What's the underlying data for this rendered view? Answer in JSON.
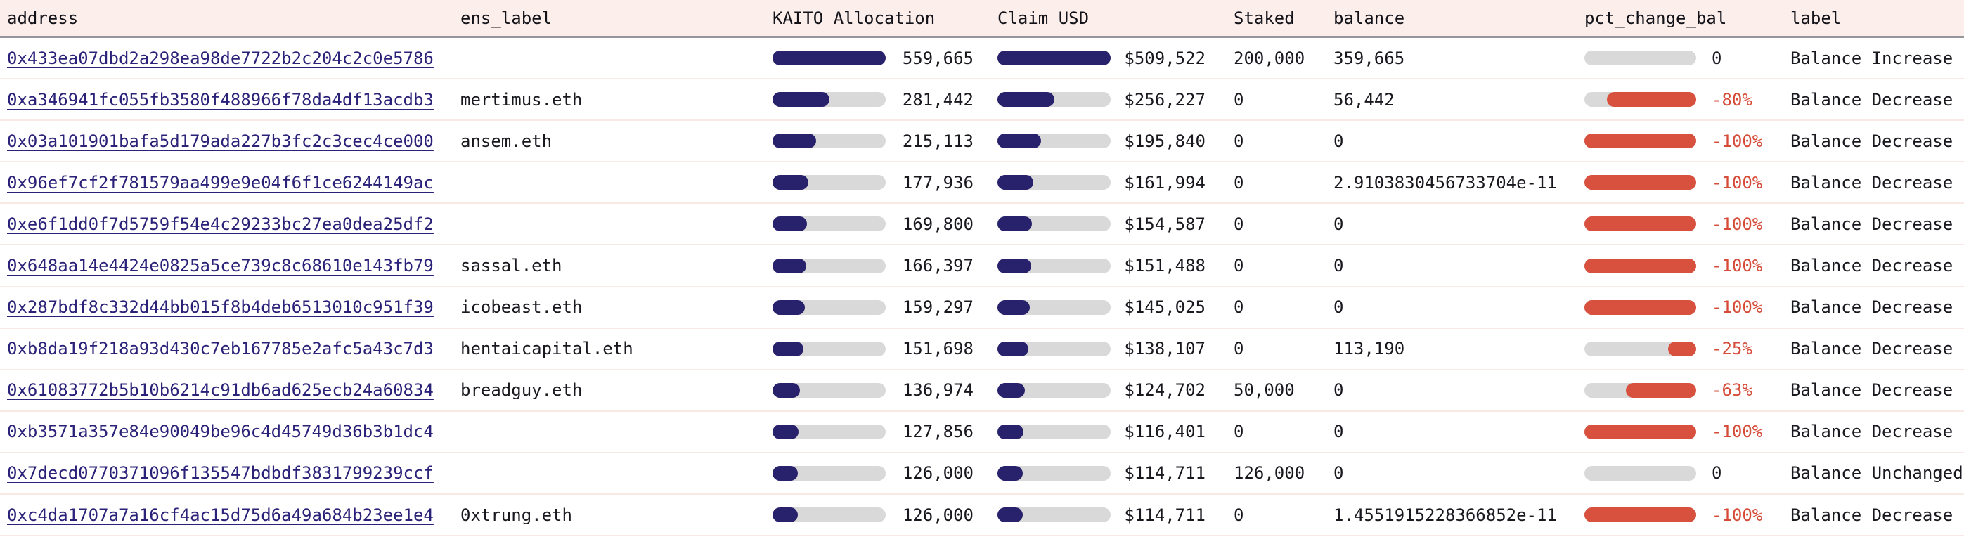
{
  "header": {
    "columns": [
      "address",
      "ens_label",
      "KAITO Allocation",
      "Claim USD",
      "Staked",
      "balance",
      "pct_change_bal",
      "label"
    ]
  },
  "colors": {
    "header_bg": "#fbeeeb",
    "header_border": "#96959b",
    "row_separator": "#f9e9e5",
    "link_navy": "#2a2178",
    "bar_navy": "#28216b",
    "bar_red": "#d8503e",
    "bar_track_gray": "#d9d9d9",
    "negative_text": "#d54b38",
    "body_text": "#18181f"
  },
  "rows": [
    {
      "address": "0x433ea07dbd2a298ea98de7722b2c204c2c0e5786",
      "ens_label": "",
      "kaito_alloc": "559,665",
      "kaito_fill_pct": 100,
      "claim_usd": "$509,522",
      "claim_fill_pct": 100,
      "staked": "200,000",
      "balance": "359,665",
      "pct_change_bal": "0",
      "pct_fill_pct": 0,
      "pct_negative": false,
      "label": "Balance Increase"
    },
    {
      "address": "0xa346941fc055fb3580f488966f78da4df13acdb3",
      "ens_label": "mertimus.eth",
      "kaito_alloc": "281,442",
      "kaito_fill_pct": 50.3,
      "claim_usd": "$256,227",
      "claim_fill_pct": 50.3,
      "staked": "0",
      "balance": "56,442",
      "pct_change_bal": "-80%",
      "pct_fill_pct": 80,
      "pct_negative": true,
      "label": "Balance Decrease"
    },
    {
      "address": "0x03a101901bafa5d179ada227b3fc2c3cec4ce000",
      "ens_label": "ansem.eth",
      "kaito_alloc": "215,113",
      "kaito_fill_pct": 38.4,
      "claim_usd": "$195,840",
      "claim_fill_pct": 38.4,
      "staked": "0",
      "balance": "0",
      "pct_change_bal": "-100%",
      "pct_fill_pct": 100,
      "pct_negative": true,
      "label": "Balance Decrease"
    },
    {
      "address": "0x96ef7cf2f781579aa499e9e04f6f1ce6244149ac",
      "ens_label": "",
      "kaito_alloc": "177,936",
      "kaito_fill_pct": 31.8,
      "claim_usd": "$161,994",
      "claim_fill_pct": 31.8,
      "staked": "0",
      "balance": "2.9103830456733704e-11",
      "pct_change_bal": "-100%",
      "pct_fill_pct": 100,
      "pct_negative": true,
      "label": "Balance Decrease"
    },
    {
      "address": "0xe6f1dd0f7d5759f54e4c29233bc27ea0dea25df2",
      "ens_label": "",
      "kaito_alloc": "169,800",
      "kaito_fill_pct": 30.3,
      "claim_usd": "$154,587",
      "claim_fill_pct": 30.3,
      "staked": "0",
      "balance": "0",
      "pct_change_bal": "-100%",
      "pct_fill_pct": 100,
      "pct_negative": true,
      "label": "Balance Decrease"
    },
    {
      "address": "0x648aa14e4424e0825a5ce739c8c68610e143fb79",
      "ens_label": "sassal.eth",
      "kaito_alloc": "166,397",
      "kaito_fill_pct": 29.7,
      "claim_usd": "$151,488",
      "claim_fill_pct": 29.7,
      "staked": "0",
      "balance": "0",
      "pct_change_bal": "-100%",
      "pct_fill_pct": 100,
      "pct_negative": true,
      "label": "Balance Decrease"
    },
    {
      "address": "0x287bdf8c332d44bb015f8b4deb6513010c951f39",
      "ens_label": "icobeast.eth",
      "kaito_alloc": "159,297",
      "kaito_fill_pct": 28.5,
      "claim_usd": "$145,025",
      "claim_fill_pct": 28.5,
      "staked": "0",
      "balance": "0",
      "pct_change_bal": "-100%",
      "pct_fill_pct": 100,
      "pct_negative": true,
      "label": "Balance Decrease"
    },
    {
      "address": "0xb8da19f218a93d430c7eb167785e2afc5a43c7d3",
      "ens_label": "hentaicapital.eth",
      "kaito_alloc": "151,698",
      "kaito_fill_pct": 27.1,
      "claim_usd": "$138,107",
      "claim_fill_pct": 27.1,
      "staked": "0",
      "balance": "113,190",
      "pct_change_bal": "-25%",
      "pct_fill_pct": 25,
      "pct_negative": true,
      "label": "Balance Decrease"
    },
    {
      "address": "0x61083772b5b10b6214c91db6ad625ecb24a60834",
      "ens_label": "breadguy.eth",
      "kaito_alloc": "136,974",
      "kaito_fill_pct": 24.5,
      "claim_usd": "$124,702",
      "claim_fill_pct": 24.5,
      "staked": "50,000",
      "balance": "0",
      "pct_change_bal": "-63%",
      "pct_fill_pct": 63,
      "pct_negative": true,
      "label": "Balance Decrease"
    },
    {
      "address": "0xb3571a357e84e90049be96c4d45749d36b3b1dc4",
      "ens_label": "",
      "kaito_alloc": "127,856",
      "kaito_fill_pct": 22.8,
      "claim_usd": "$116,401",
      "claim_fill_pct": 22.8,
      "staked": "0",
      "balance": "0",
      "pct_change_bal": "-100%",
      "pct_fill_pct": 100,
      "pct_negative": true,
      "label": "Balance Decrease"
    },
    {
      "address": "0x7decd0770371096f135547bdbdf3831799239ccf",
      "ens_label": "",
      "kaito_alloc": "126,000",
      "kaito_fill_pct": 22.5,
      "claim_usd": "$114,711",
      "claim_fill_pct": 22.5,
      "staked": "126,000",
      "balance": "0",
      "pct_change_bal": "0",
      "pct_fill_pct": 0,
      "pct_negative": false,
      "label": "Balance Unchanged"
    },
    {
      "address": "0xc4da1707a7a16cf4ac15d75d6a49a684b23ee1e4",
      "ens_label": "0xtrung.eth",
      "kaito_alloc": "126,000",
      "kaito_fill_pct": 22.5,
      "claim_usd": "$114,711",
      "claim_fill_pct": 22.5,
      "staked": "0",
      "balance": "1.4551915228366852e-11",
      "pct_change_bal": "-100%",
      "pct_fill_pct": 100,
      "pct_negative": true,
      "label": "Balance Decrease"
    }
  ]
}
